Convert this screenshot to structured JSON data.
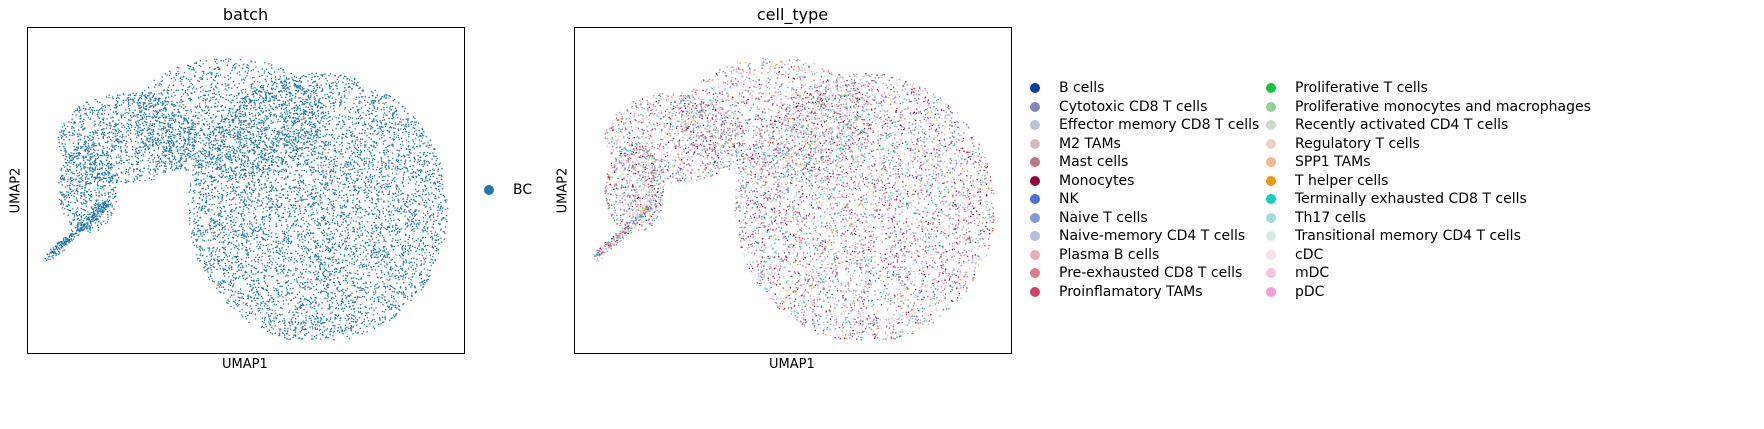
{
  "chart_data": [
    {
      "type": "scatter",
      "title": "batch",
      "xlabel": "UMAP1",
      "ylabel": "UMAP2",
      "grid": false,
      "legend_placement": "right",
      "legend": [
        {
          "name": "BC",
          "color": "#1f77b4"
        }
      ]
    },
    {
      "type": "scatter",
      "title": "cell_type",
      "xlabel": "UMAP1",
      "ylabel": "UMAP2",
      "grid": false,
      "legend_placement": "right",
      "legend": [
        {
          "name": "B cells",
          "color": "#023fa5"
        },
        {
          "name": "Cytotoxic CD8 T cells",
          "color": "#7d87b9"
        },
        {
          "name": "Effector memory CD8 T cells",
          "color": "#bec1d4"
        },
        {
          "name": "M2 TAMs",
          "color": "#d6bcc0"
        },
        {
          "name": "Mast cells",
          "color": "#bb7784"
        },
        {
          "name": "Monocytes",
          "color": "#8e063b"
        },
        {
          "name": "NK",
          "color": "#4a6fe3"
        },
        {
          "name": "Naive T cells",
          "color": "#8595e1"
        },
        {
          "name": "Naive-memory CD4 T cells",
          "color": "#b5bbe3"
        },
        {
          "name": "Plasma B cells",
          "color": "#e6afb9"
        },
        {
          "name": "Pre-exhausted CD8 T cells",
          "color": "#e07b91"
        },
        {
          "name": "Proinflamatory TAMs",
          "color": "#d33f6a"
        },
        {
          "name": "Proliferative T cells",
          "color": "#11c638"
        },
        {
          "name": "Proliferative monocytes and macrophages",
          "color": "#8dd593"
        },
        {
          "name": "Recently activated CD4 T cells",
          "color": "#c6dec7"
        },
        {
          "name": "Regulatory T cells",
          "color": "#ead3c6"
        },
        {
          "name": "SPP1 TAMs",
          "color": "#f0b98d"
        },
        {
          "name": "T helper cells",
          "color": "#ef9708"
        },
        {
          "name": "Terminally exhausted CD8 T cells",
          "color": "#0fcfc0"
        },
        {
          "name": "Th17 cells",
          "color": "#9cded6"
        },
        {
          "name": "Transitional memory CD4 T cells",
          "color": "#d5eae7"
        },
        {
          "name": "cDC",
          "color": "#f3e1eb"
        },
        {
          "name": "mDC",
          "color": "#f6c4e1"
        },
        {
          "name": "pDC",
          "color": "#f79cd4"
        }
      ]
    }
  ]
}
